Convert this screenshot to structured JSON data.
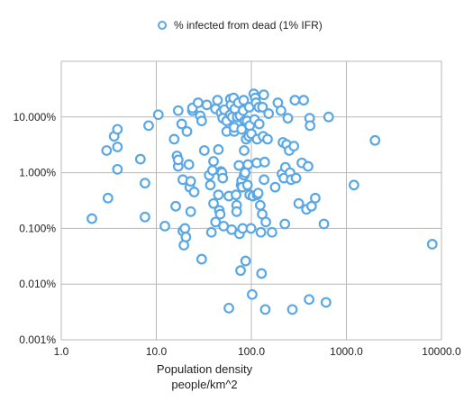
{
  "chart_data": {
    "type": "scatter",
    "title": "",
    "xlabel": [
      "Population density",
      "people/km^2"
    ],
    "ylabel": "",
    "x_scale": "log",
    "y_scale": "log",
    "xlim": [
      1,
      10000
    ],
    "ylim": [
      0.001,
      100
    ],
    "x_ticks": [
      "1.0",
      "10.0",
      "100.0",
      "1000.0",
      "10000.0"
    ],
    "y_ticks": [
      "0.001%",
      "0.010%",
      "0.100%",
      "1.000%",
      "10.000%"
    ],
    "grid": true,
    "legend_position": "top",
    "marker_color": "#5aa7e6",
    "series": [
      {
        "name": "% infected from dead (1% IFR)",
        "points": [
          [
            2.1,
            0.15
          ],
          [
            3.1,
            0.35
          ],
          [
            3.0,
            2.5
          ],
          [
            3.6,
            4.5
          ],
          [
            3.9,
            6.0
          ],
          [
            3.9,
            2.9
          ],
          [
            3.9,
            1.15
          ],
          [
            6.8,
            1.75
          ],
          [
            7.6,
            0.65
          ],
          [
            7.6,
            0.16
          ],
          [
            8.3,
            7.0
          ],
          [
            10.5,
            11.0
          ],
          [
            12.3,
            0.11
          ],
          [
            15.4,
            4.0
          ],
          [
            16.0,
            0.25
          ],
          [
            16.5,
            2.0
          ],
          [
            17.0,
            1.3
          ],
          [
            17.0,
            1.7
          ],
          [
            17.0,
            13.0
          ],
          [
            18.5,
            7.5
          ],
          [
            19.0,
            0.75
          ],
          [
            19.0,
            0.09
          ],
          [
            19.5,
            0.05
          ],
          [
            20.0,
            0.1
          ],
          [
            20.5,
            0.07
          ],
          [
            21.0,
            5.5
          ],
          [
            22.0,
            1.4
          ],
          [
            22.5,
            0.55
          ],
          [
            23.0,
            0.2
          ],
          [
            23.0,
            0.7
          ],
          [
            24.0,
            13.0
          ],
          [
            24.0,
            14.5
          ],
          [
            25.0,
            0.45
          ],
          [
            27.5,
            18.0
          ],
          [
            29.0,
            10.5
          ],
          [
            30.0,
            0.028
          ],
          [
            30.0,
            8.5
          ],
          [
            32.0,
            2.5
          ],
          [
            34.0,
            16.5
          ],
          [
            36.0,
            0.9
          ],
          [
            37.0,
            0.6
          ],
          [
            38.0,
            0.085
          ],
          [
            39.0,
            1.1
          ],
          [
            40.0,
            1.6
          ],
          [
            40.0,
            0.28
          ],
          [
            42.0,
            14.0
          ],
          [
            42.0,
            0.13
          ],
          [
            44.0,
            20.0
          ],
          [
            45.0,
            0.4
          ],
          [
            45.0,
            2.6
          ],
          [
            46.0,
            0.21
          ],
          [
            47.0,
            0.18
          ],
          [
            48.0,
            1.05
          ],
          [
            48.0,
            12.0
          ],
          [
            49.0,
            1.0
          ],
          [
            50.0,
            0.8
          ],
          [
            50.0,
            9.5
          ],
          [
            51.0,
            0.11
          ],
          [
            52.0,
            13.5
          ],
          [
            55.0,
            5.5
          ],
          [
            55.0,
            8.5
          ],
          [
            58.0,
            0.0037
          ],
          [
            58.0,
            0.38
          ],
          [
            60.0,
            21.0
          ],
          [
            60.0,
            11.0
          ],
          [
            61.0,
            16.5
          ],
          [
            62.0,
            0.095
          ],
          [
            63.0,
            10.0
          ],
          [
            65.0,
            22.0
          ],
          [
            66.0,
            5.5
          ],
          [
            66.0,
            6.5
          ],
          [
            67.0,
            14.0
          ],
          [
            69.0,
            0.4
          ],
          [
            70.0,
            0.26
          ],
          [
            70.0,
            0.2
          ],
          [
            71.0,
            10.0
          ],
          [
            73.0,
            18.0
          ],
          [
            74.0,
            1.35
          ],
          [
            75.0,
            0.08
          ],
          [
            76.0,
            10.5
          ],
          [
            77.0,
            0.0175
          ],
          [
            78.0,
            0.6
          ],
          [
            79.0,
            0.72
          ],
          [
            79.0,
            6.0
          ],
          [
            80.0,
            0.55
          ],
          [
            81.0,
            0.1
          ],
          [
            82.0,
            13.0
          ],
          [
            83.0,
            20.0
          ],
          [
            84.0,
            2.5
          ],
          [
            84.0,
            0.9
          ],
          [
            85.0,
            8.5
          ],
          [
            86.0,
            1.0
          ],
          [
            87.0,
            0.026
          ],
          [
            88.0,
            4.0
          ],
          [
            90.0,
            8.5
          ],
          [
            91.0,
            0.6
          ],
          [
            92.0,
            1.4
          ],
          [
            94.0,
            4.5
          ],
          [
            95.0,
            15.0
          ],
          [
            96.0,
            7.0
          ],
          [
            96.0,
            0.4
          ],
          [
            99.0,
            0.1
          ],
          [
            100.0,
            5.0
          ],
          [
            102.0,
            0.0065
          ],
          [
            104.0,
            0.38
          ],
          [
            106.0,
            26.0
          ],
          [
            108.0,
            9.0
          ],
          [
            110.0,
            22.0
          ],
          [
            112.0,
            18.0
          ],
          [
            114.0,
            1.5
          ],
          [
            115.0,
            0.4
          ],
          [
            115.0,
            4.0
          ],
          [
            118.0,
            0.43
          ],
          [
            120.0,
            15.0
          ],
          [
            121.0,
            7.5
          ],
          [
            124.0,
            0.26
          ],
          [
            126.0,
            0.085
          ],
          [
            128.0,
            0.0155
          ],
          [
            130.0,
            0.18
          ],
          [
            131.0,
            15.0
          ],
          [
            133.0,
            4.5
          ],
          [
            135.0,
            25.0
          ],
          [
            136.0,
            0.75
          ],
          [
            138.0,
            1.55
          ],
          [
            140.0,
            0.0035
          ],
          [
            142.0,
            0.13
          ],
          [
            148.0,
            4.0
          ],
          [
            152.0,
            11.5
          ],
          [
            165.0,
            0.085
          ],
          [
            178.0,
            0.55
          ],
          [
            190.0,
            18.0
          ],
          [
            205.0,
            13.0
          ],
          [
            210.0,
            0.95
          ],
          [
            215.0,
            3.5
          ],
          [
            220.0,
            0.8
          ],
          [
            225.0,
            0.12
          ],
          [
            228.0,
            1.25
          ],
          [
            235.0,
            3.2
          ],
          [
            242.0,
            9.5
          ],
          [
            250.0,
            2.5
          ],
          [
            255.0,
            1.0
          ],
          [
            262.0,
            0.75
          ],
          [
            270.0,
            0.0035
          ],
          [
            280.0,
            3.0
          ],
          [
            287.0,
            20.0
          ],
          [
            295.0,
            0.8
          ],
          [
            315.0,
            0.28
          ],
          [
            340.0,
            1.5
          ],
          [
            355.0,
            20.0
          ],
          [
            380.0,
            0.22
          ],
          [
            395.0,
            1.3
          ],
          [
            405.0,
            0.0053
          ],
          [
            410.0,
            9.5
          ],
          [
            415.0,
            7.0
          ],
          [
            430.0,
            0.25
          ],
          [
            470.0,
            0.35
          ],
          [
            580.0,
            0.12
          ],
          [
            610.0,
            0.0047
          ],
          [
            650.0,
            10.0
          ],
          [
            1200.0,
            0.6
          ],
          [
            2000.0,
            3.8
          ],
          [
            8000.0,
            0.052
          ]
        ]
      }
    ]
  }
}
